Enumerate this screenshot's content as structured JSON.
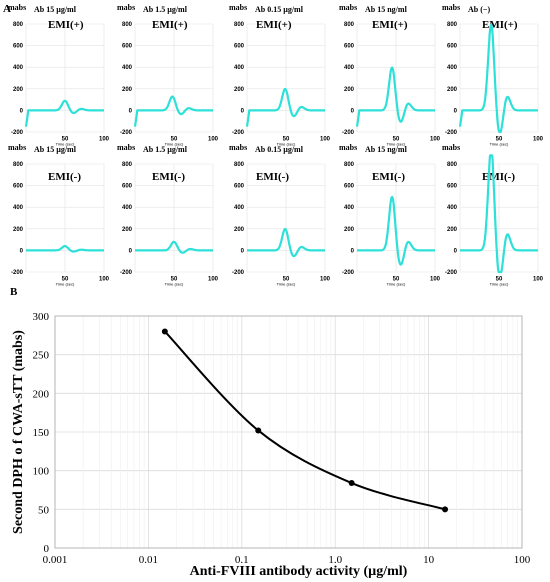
{
  "panel_a_letter": "A",
  "panel_b_letter": "B",
  "chart_data": [
    {
      "type": "line",
      "panel": "A",
      "description_free": true,
      "ylabel_units": "mabs",
      "xlabel": "Time (sec)",
      "x_ticks": [
        "50",
        "100"
      ],
      "series_color": "#2de0d8",
      "rows": [
        {
          "condition": "EMI(+)",
          "panels": [
            {
              "title": "Ab 15 µg/ml",
              "y_ticks": [
                "800",
                "600",
                "400",
                "200",
                "0",
                "-200"
              ],
              "ylim": [
                -200,
                800
              ],
              "peak_x": 50,
              "peak_y": 90
            },
            {
              "title": "Ab 1.5 µg/ml",
              "y_ticks": [
                "800",
                "600",
                "400",
                "200",
                "0",
                "-200"
              ],
              "ylim": [
                -200,
                800
              ],
              "peak_x": 48,
              "peak_y": 130
            },
            {
              "title": "Ab 0.15 µg/ml",
              "y_ticks": [
                "800",
                "600",
                "400",
                "200",
                "0",
                "-200"
              ],
              "ylim": [
                -200,
                800
              ],
              "peak_x": 49,
              "peak_y": 200
            },
            {
              "title": "Ab 15 ng/ml",
              "y_ticks": [
                "800",
                "600",
                "400",
                "200",
                "0",
                "-200"
              ],
              "ylim": [
                -200,
                800
              ],
              "peak_x": 45,
              "peak_y": 400
            },
            {
              "title": "Ab (−)",
              "y_ticks": [
                "800",
                "600",
                "400",
                "200",
                "0",
                "-200"
              ],
              "ylim": [
                -200,
                800
              ],
              "peak_x": 40,
              "peak_y": 800
            }
          ]
        },
        {
          "condition": "EMI(-)",
          "panels": [
            {
              "title": "Ab 15 µg/ml",
              "y_ticks": [
                "800",
                "600",
                "400",
                "200",
                "0",
                "-200"
              ],
              "ylim": [
                -200,
                800
              ],
              "peak_x": 50,
              "peak_y": 40
            },
            {
              "title": "Ab 1.5 µg/ml",
              "y_ticks": [
                "800",
                "600",
                "400",
                "200",
                "0",
                "-200"
              ],
              "ylim": [
                -200,
                800
              ],
              "peak_x": 50,
              "peak_y": 80
            },
            {
              "title": "Ab 0.15 µg/ml",
              "y_ticks": [
                "800",
                "600",
                "400",
                "200",
                "0",
                "-200"
              ],
              "ylim": [
                -200,
                800
              ],
              "peak_x": 49,
              "peak_y": 200
            },
            {
              "title": "Ab 15 ng/ml",
              "y_ticks": [
                "800",
                "600",
                "400",
                "200",
                "0",
                "-200"
              ],
              "ylim": [
                -200,
                800
              ],
              "peak_x": 45,
              "peak_y": 500
            },
            {
              "title": "",
              "y_ticks": [
                "800",
                "600",
                "400",
                "200",
                "0",
                "-200"
              ],
              "ylim": [
                -200,
                800
              ],
              "peak_x": 40,
              "peak_y": 950
            }
          ]
        }
      ]
    },
    {
      "type": "line",
      "panel": "B",
      "xlabel": "Anti-FVIII antibody activity (µg/ml)",
      "ylabel": "Second DPH o f CWA-sTT (mabs)",
      "x_scale": "log",
      "x_ticks": [
        "0.001",
        "0.01",
        "0.1",
        "1.0",
        "10",
        "100"
      ],
      "xlim": [
        0.001,
        100
      ],
      "y_ticks": [
        "0",
        "50",
        "100",
        "150",
        "200",
        "250",
        "300"
      ],
      "ylim": [
        0,
        300
      ],
      "x": [
        0.015,
        0.15,
        1.5,
        15
      ],
      "values": [
        280,
        152,
        84,
        50
      ],
      "line_color": "#000000"
    }
  ]
}
